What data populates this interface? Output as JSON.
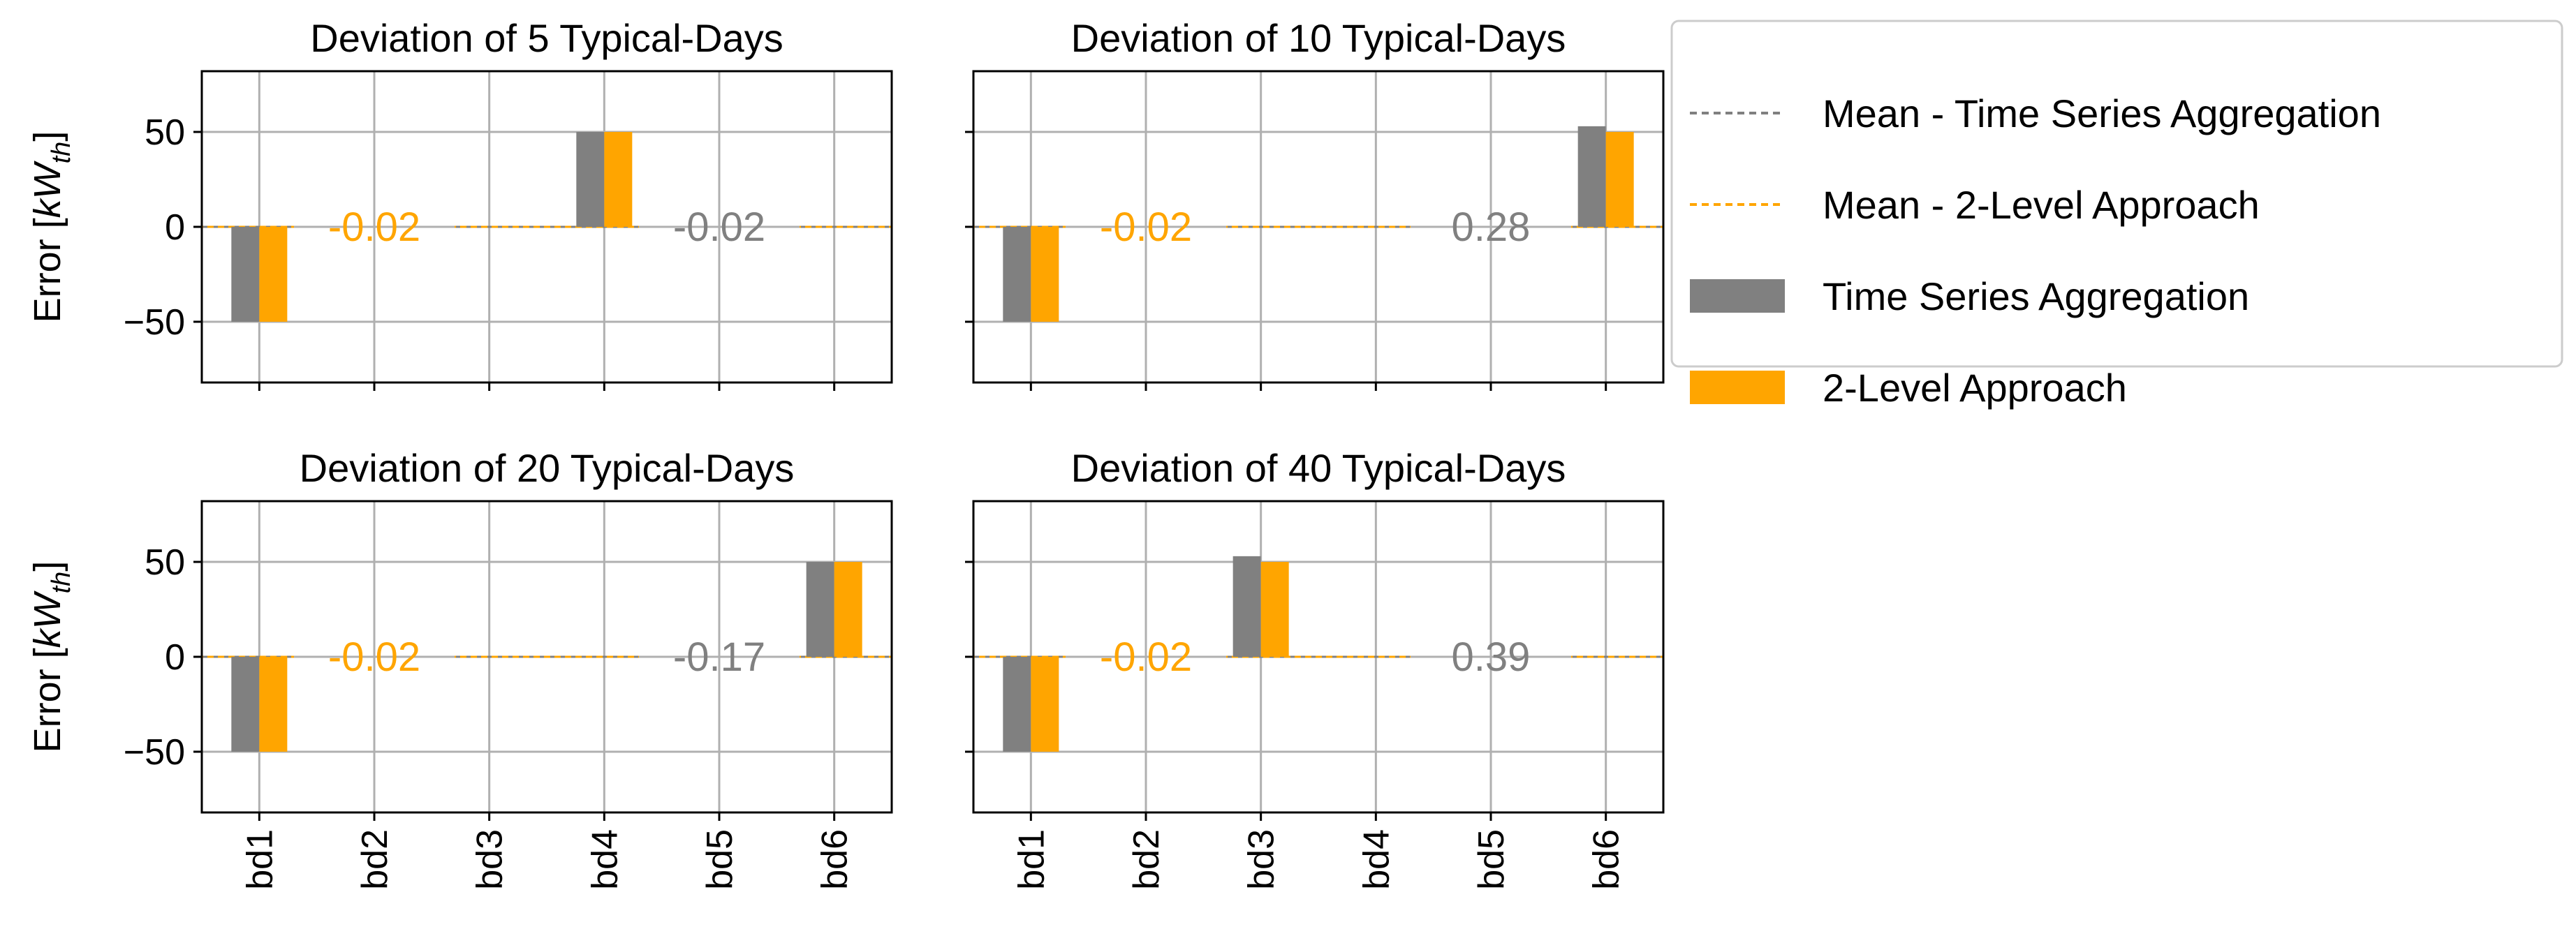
{
  "figure": {
    "shared_categories": [
      "bd1",
      "bd2",
      "bd3",
      "bd4",
      "bd5",
      "bd6"
    ],
    "ylabel_text": "Error [",
    "ylabel_math_base": "kW",
    "ylabel_math_sub": "th",
    "ylabel_close": "]"
  },
  "colors": {
    "series_gray": "#808080",
    "series_orange": "#ffa500",
    "grid": "#b0b0b0",
    "axis": "#000000"
  },
  "legend": {
    "items": [
      {
        "label": "Mean - Time Series Aggregation",
        "kind": "dashed-line",
        "color_key": "series_gray"
      },
      {
        "label": "Mean - 2-Level Approach",
        "kind": "dashed-line",
        "color_key": "series_orange"
      },
      {
        "label": "Time Series Aggregation",
        "kind": "patch",
        "color_key": "series_gray"
      },
      {
        "label": "2-Level Approach",
        "kind": "patch",
        "color_key": "series_orange"
      }
    ]
  },
  "chart_data": [
    {
      "type": "bar",
      "title": "Deviation of 5 Typical-Days",
      "categories": [
        "bd1",
        "bd2",
        "bd3",
        "bd4",
        "bd5",
        "bd6"
      ],
      "series": [
        {
          "name": "Time Series Aggregation",
          "values": [
            -50,
            0,
            0,
            50,
            0,
            0
          ]
        },
        {
          "name": "2-Level Approach",
          "values": [
            -50,
            0,
            0,
            50,
            0,
            0
          ]
        }
      ],
      "means": [
        {
          "name": "Mean - 2-Level Approach",
          "label": "-0.02",
          "label_slot": 1
        },
        {
          "name": "Mean - Time Series Aggregation",
          "label": "-0.02",
          "label_slot": 4
        }
      ],
      "yticks": [
        "50",
        "0",
        "−50"
      ],
      "ytick_values": [
        50,
        0,
        -50
      ],
      "ylim": [
        -82,
        82
      ],
      "show_ylabel": true,
      "show_xticklabels": false
    },
    {
      "type": "bar",
      "title": "Deviation of 10 Typical-Days",
      "categories": [
        "bd1",
        "bd2",
        "bd3",
        "bd4",
        "bd5",
        "bd6"
      ],
      "series": [
        {
          "name": "Time Series Aggregation",
          "values": [
            -50,
            0,
            0,
            0,
            0,
            53
          ]
        },
        {
          "name": "2-Level Approach",
          "values": [
            -50,
            0,
            0,
            0,
            0,
            50
          ]
        }
      ],
      "means": [
        {
          "name": "Mean - 2-Level Approach",
          "label": "-0.02",
          "label_slot": 1
        },
        {
          "name": "Mean - Time Series Aggregation",
          "label": "0.28",
          "label_slot": 4
        }
      ],
      "yticks": [
        "50",
        "0",
        "−50"
      ],
      "ytick_values": [
        50,
        0,
        -50
      ],
      "ylim": [
        -82,
        82
      ],
      "show_ylabel": false,
      "show_xticklabels": false
    },
    {
      "type": "bar",
      "title": "Deviation of 20 Typical-Days",
      "categories": [
        "bd1",
        "bd2",
        "bd3",
        "bd4",
        "bd5",
        "bd6"
      ],
      "series": [
        {
          "name": "Time Series Aggregation",
          "values": [
            -50,
            0,
            0,
            0,
            0,
            50
          ]
        },
        {
          "name": "2-Level Approach",
          "values": [
            -50,
            0,
            0,
            0,
            0,
            50
          ]
        }
      ],
      "means": [
        {
          "name": "Mean - 2-Level Approach",
          "label": "-0.02",
          "label_slot": 1
        },
        {
          "name": "Mean - Time Series Aggregation",
          "label": "-0.17",
          "label_slot": 4
        }
      ],
      "yticks": [
        "50",
        "0",
        "−50"
      ],
      "ytick_values": [
        50,
        0,
        -50
      ],
      "ylim": [
        -82,
        82
      ],
      "show_ylabel": true,
      "show_xticklabels": true
    },
    {
      "type": "bar",
      "title": "Deviation of 40 Typical-Days",
      "categories": [
        "bd1",
        "bd2",
        "bd3",
        "bd4",
        "bd5",
        "bd6"
      ],
      "series": [
        {
          "name": "Time Series Aggregation",
          "values": [
            -50,
            0,
            53,
            0,
            0,
            0
          ]
        },
        {
          "name": "2-Level Approach",
          "values": [
            -50,
            0,
            50,
            0,
            0,
            0
          ]
        }
      ],
      "means": [
        {
          "name": "Mean - 2-Level Approach",
          "label": "-0.02",
          "label_slot": 1
        },
        {
          "name": "Mean - Time Series Aggregation",
          "label": "0.39",
          "label_slot": 4
        }
      ],
      "yticks": [
        "50",
        "0",
        "−50"
      ],
      "ytick_values": [
        50,
        0,
        -50
      ],
      "ylim": [
        -82,
        82
      ],
      "show_ylabel": false,
      "show_xticklabels": true
    }
  ]
}
